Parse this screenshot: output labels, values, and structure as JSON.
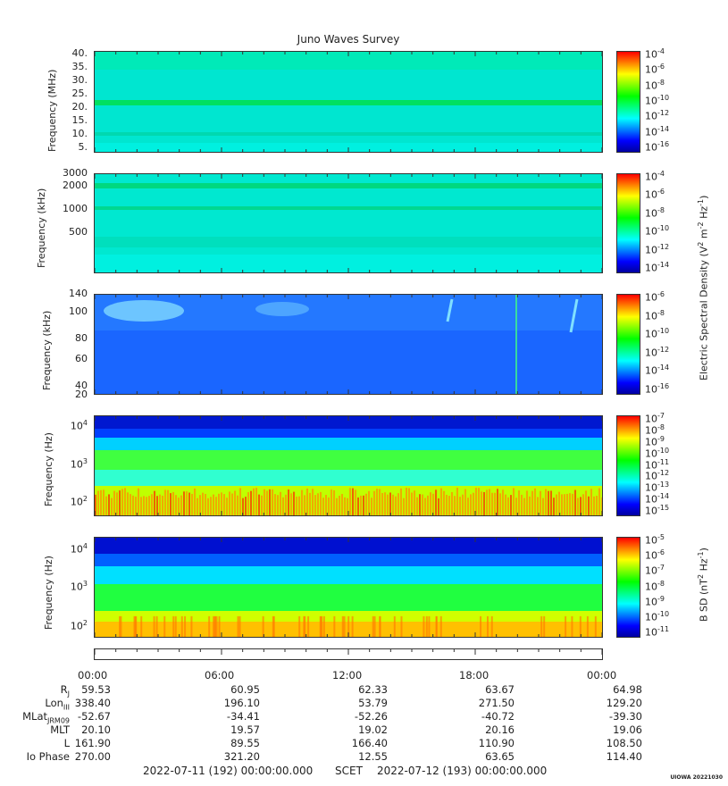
{
  "title": "Juno Waves Survey",
  "colors": {
    "cmap": [
      "#0000a0",
      "#0000ff",
      "#0080ff",
      "#00ffff",
      "#00ff80",
      "#00ff00",
      "#80ff00",
      "#ffff00",
      "#ff8000",
      "#ff0000"
    ]
  },
  "chart_data": [
    {
      "type": "heatmap",
      "ylabel": "Frequency (MHz)",
      "yticks": [
        "40.",
        "35.",
        "30.",
        "25.",
        "20.",
        "15.",
        "10.",
        "5."
      ],
      "cbar_ticks": [
        "10-4",
        "10-6",
        "10-8",
        "10-10",
        "10-12",
        "10-14",
        "10-16"
      ],
      "cbar_exp": [
        "-4",
        "-6",
        "-8",
        "-10",
        "-12",
        "-14",
        "-16"
      ],
      "cbar_label": ""
    },
    {
      "type": "heatmap",
      "ylabel": "Frequency (kHz)",
      "yticks": [
        "3000",
        "2000",
        "1000",
        "500"
      ],
      "cbar_exp": [
        "-4",
        "-6",
        "-8",
        "-10",
        "-12",
        "-14"
      ],
      "cbar_label": "Electric Spectral Density (V2 m-2 Hz-1)"
    },
    {
      "type": "heatmap",
      "ylabel": "Frequency (kHz)",
      "yticks": [
        "140",
        "100",
        "80",
        "60",
        "40",
        "20"
      ],
      "cbar_exp": [
        "-6",
        "-8",
        "-10",
        "-12",
        "-14",
        "-16"
      ],
      "cbar_label": ""
    },
    {
      "type": "heatmap",
      "ylabel": "Frequency (Hz)",
      "yticks": [
        "10 4",
        "10 3",
        "10 2"
      ],
      "ytick_exp": [
        "4",
        "3",
        "2"
      ],
      "cbar_exp": [
        "-7",
        "-8",
        "-9",
        "-10",
        "-11",
        "-12",
        "-13",
        "-14",
        "-15"
      ],
      "cbar_label": ""
    },
    {
      "type": "heatmap",
      "ylabel": "Frequency (Hz)",
      "ytick_exp": [
        "4",
        "3",
        "2"
      ],
      "cbar_exp": [
        "-5",
        "-6",
        "-7",
        "-8",
        "-9",
        "-10",
        "-11"
      ],
      "cbar_label": "B SD (nT2 Hz-1)"
    }
  ],
  "ephemeris": {
    "times": [
      "00:00",
      "06:00",
      "12:00",
      "18:00",
      "00:00"
    ],
    "rows": [
      {
        "label": "RJ",
        "values": [
          "59.53",
          "60.95",
          "62.33",
          "63.67",
          "64.98"
        ]
      },
      {
        "label": "LonIII",
        "values": [
          "338.40",
          "196.10",
          "53.79",
          "271.50",
          "129.20"
        ]
      },
      {
        "label": "MLatJRM09",
        "values": [
          "-52.67",
          "-34.41",
          "-52.26",
          "-40.72",
          "-39.30"
        ]
      },
      {
        "label": "MLT",
        "values": [
          "20.10",
          "19.57",
          "19.02",
          "20.16",
          "19.06"
        ]
      },
      {
        "label": "L",
        "values": [
          "161.90",
          "89.55",
          "166.40",
          "110.90",
          "108.50"
        ]
      },
      {
        "label": "Io Phase",
        "values": [
          "270.00",
          "321.20",
          "12.55",
          "63.65",
          "114.40"
        ]
      }
    ]
  },
  "footer": {
    "start": "2022-07-11 (192) 00:00:00.000",
    "scet": "SCET",
    "end": "2022-07-12 (193) 00:00:00.000"
  },
  "credit": "UIOWA 20221030"
}
